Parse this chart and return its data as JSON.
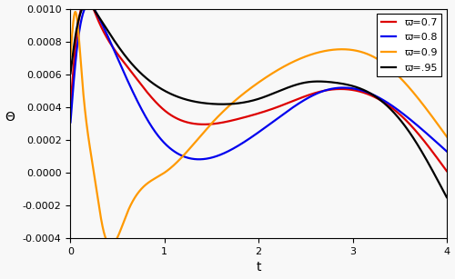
{
  "xlabel": "t",
  "ylabel": "Θ",
  "xlim": [
    0,
    4
  ],
  "ylim": [
    -0.0004,
    0.001
  ],
  "yticks": [
    -0.0004,
    -0.0002,
    0.0,
    0.0002,
    0.0004,
    0.0006,
    0.0008,
    0.001
  ],
  "xticks": [
    0,
    1,
    2,
    3,
    4
  ],
  "legend_entries": [
    "ϖ=0.7",
    "ϖ=0.8",
    "ϖ=0.9",
    "ϖ=.95"
  ],
  "colors": [
    "#dd0000",
    "#0000ee",
    "#ff9900",
    "#000000"
  ],
  "linewidth": 1.6,
  "bg_color": "#f8f8f8"
}
